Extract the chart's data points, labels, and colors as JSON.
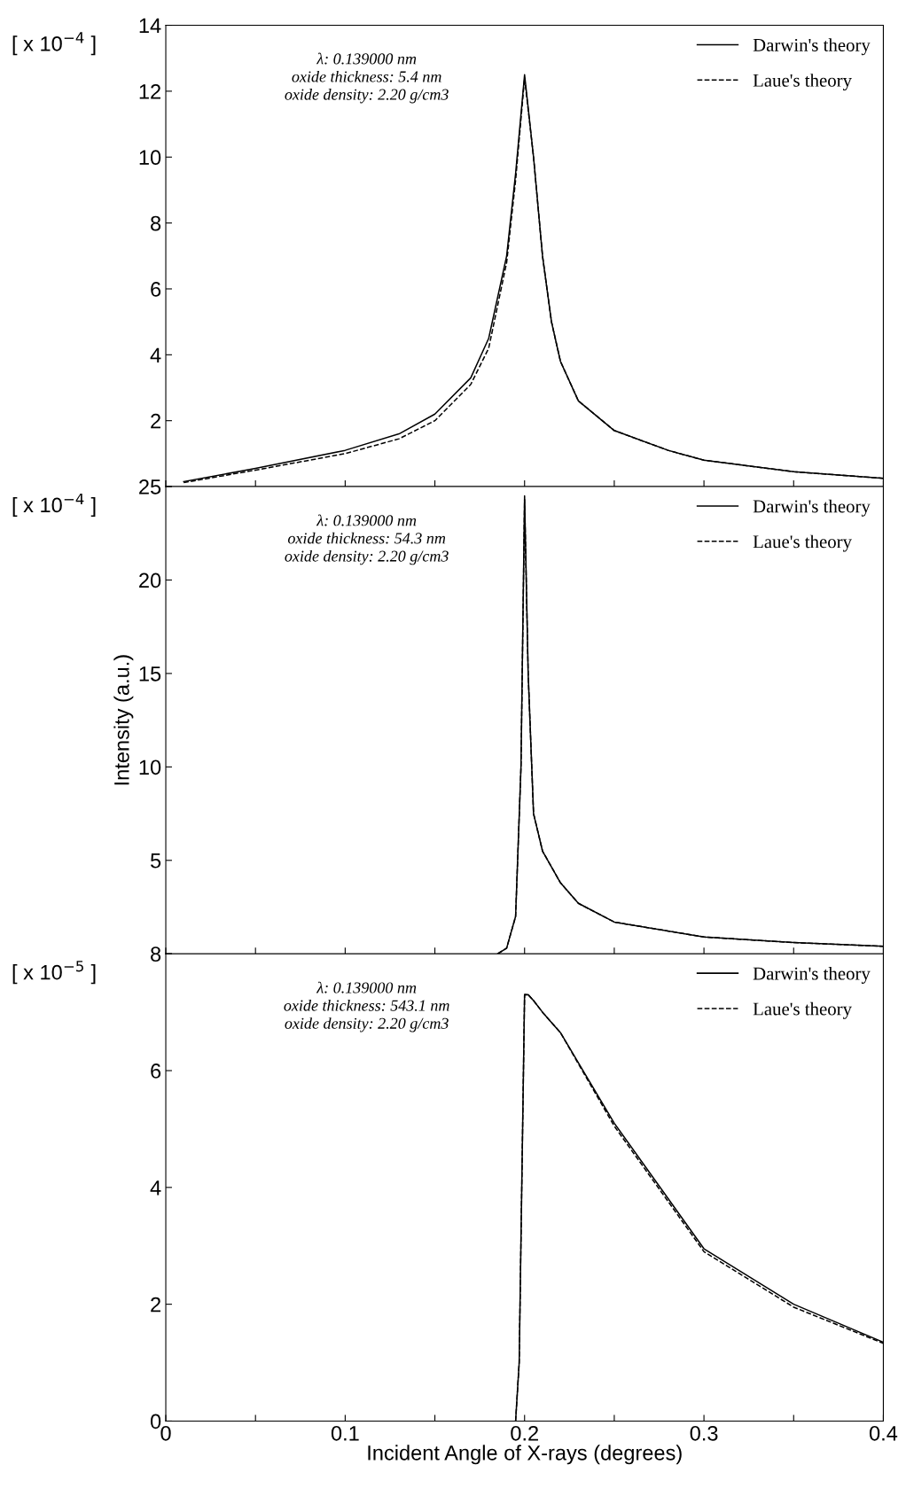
{
  "chart_data": [
    {
      "type": "line",
      "annotations": [
        "[ x 10$^{−4}$ ]",
        "λ: 0.139000 nm\noxide thickness: 5.4 nm\noxide density: 2.20 g/cm3"
      ],
      "xlim": [
        0,
        0.4
      ],
      "ylim": [
        0,
        14
      ],
      "xticks": [
        0,
        {
          "value": 0.05,
          "label": null
        },
        0.1,
        {
          "value": 0.15,
          "label": null
        },
        0.2,
        {
          "value": 0.25,
          "label": null
        },
        0.3,
        {
          "value": 0.35,
          "label": null
        },
        0.4
      ],
      "yticks": [
        {
          "value": 0,
          "label": null
        },
        2,
        4,
        6,
        8,
        10,
        12,
        14
      ],
      "tick_labels": "y",
      "legend": "top right",
      "grid": false,
      "series": [
        {
          "name": "Darwin's theory",
          "color": "#000000",
          "line_style": "solid",
          "x": [
            0.01,
            0.05,
            0.1,
            0.13,
            0.15,
            0.17,
            0.18,
            0.19,
            0.195,
            0.2,
            0.205,
            0.21,
            0.215,
            0.22,
            0.23,
            0.25,
            0.28,
            0.3,
            0.35,
            0.4
          ],
          "values": [
            0.15,
            0.55,
            1.1,
            1.6,
            2.2,
            3.3,
            4.5,
            7,
            9.5,
            12.5,
            10,
            7,
            5,
            3.8,
            2.6,
            1.7,
            1.1,
            0.8,
            0.45,
            0.25
          ]
        },
        {
          "name": "Laue's theory",
          "color": "#000000",
          "line_style": "dashed",
          "x": [
            0.01,
            0.05,
            0.1,
            0.13,
            0.15,
            0.17,
            0.18,
            0.19,
            0.195,
            0.2,
            0.205,
            0.21,
            0.215,
            0.22,
            0.23,
            0.25,
            0.28,
            0.3,
            0.35,
            0.4
          ],
          "values": [
            0.12,
            0.5,
            1.0,
            1.45,
            2.0,
            3.1,
            4.2,
            6.8,
            9.3,
            12.4,
            10,
            7,
            5,
            3.8,
            2.6,
            1.7,
            1.1,
            0.8,
            0.45,
            0.25
          ]
        }
      ]
    },
    {
      "type": "line",
      "ylabel": "Intensity (a.u.)",
      "annotations": [
        "[ x 10$^{−4}$ ]",
        "λ: 0.139000 nm\noxide thickness: 54.3 nm\noxide density: 2.20 g/cm3"
      ],
      "xlim": [
        0,
        0.4
      ],
      "ylim": [
        0,
        25
      ],
      "xticks": [
        0,
        {
          "value": 0.05,
          "label": null
        },
        0.1,
        {
          "value": 0.15,
          "label": null
        },
        0.2,
        {
          "value": 0.25,
          "label": null
        },
        0.3,
        {
          "value": 0.35,
          "label": null
        },
        0.4
      ],
      "yticks": [
        {
          "value": 0,
          "label": null
        },
        5,
        10,
        15,
        20,
        25
      ],
      "tick_labels": "y",
      "legend": "top right",
      "grid": false,
      "series": [
        {
          "name": "Darwin's theory",
          "color": "#000000",
          "line_style": "solid",
          "x": [
            0.185,
            0.19,
            0.195,
            0.198,
            0.2,
            0.202,
            0.205,
            0.21,
            0.22,
            0.23,
            0.25,
            0.3,
            0.35,
            0.4
          ],
          "values": [
            0,
            0.3,
            2,
            10,
            24.5,
            15,
            7.5,
            5.5,
            3.8,
            2.7,
            1.7,
            0.9,
            0.6,
            0.4
          ]
        },
        {
          "name": "Laue's theory",
          "color": "#000000",
          "line_style": "dashed",
          "x": [
            0.185,
            0.19,
            0.195,
            0.198,
            0.2,
            0.202,
            0.205,
            0.21,
            0.22,
            0.23,
            0.25,
            0.3,
            0.35,
            0.4
          ],
          "values": [
            0,
            0.3,
            2,
            10,
            24.3,
            15,
            7.5,
            5.5,
            3.8,
            2.7,
            1.7,
            0.9,
            0.6,
            0.4
          ]
        }
      ]
    },
    {
      "type": "line",
      "xlabel": "Incident Angle of X-rays (degrees)",
      "annotations": [
        "[ x 10$^{−5}$ ]",
        "λ: 0.139000 nm\noxide thickness: 543.1 nm\noxide density: 2.20 g/cm3"
      ],
      "xlim": [
        0,
        0.4
      ],
      "ylim": [
        0,
        8
      ],
      "xticks": [
        0,
        {
          "value": 0.05,
          "label": null
        },
        0.1,
        {
          "value": 0.15,
          "label": null
        },
        0.2,
        {
          "value": 0.25,
          "label": null
        },
        0.3,
        {
          "value": 0.35,
          "label": null
        },
        0.4
      ],
      "yticks": [
        0,
        2,
        4,
        6,
        8
      ],
      "legend": "top right",
      "grid": false,
      "series": [
        {
          "name": "Darwin's theory",
          "color": "#000000",
          "line_style": "solid",
          "x": [
            0.195,
            0.197,
            0.2,
            0.202,
            0.205,
            0.21,
            0.22,
            0.25,
            0.3,
            0.35,
            0.4
          ],
          "values": [
            0,
            1,
            7.3,
            7.3,
            7.2,
            7.0,
            6.65,
            5.1,
            2.95,
            2.0,
            1.35
          ]
        },
        {
          "name": "Laue's theory",
          "color": "#000000",
          "line_style": "dashed",
          "x": [
            0.195,
            0.197,
            0.2,
            0.202,
            0.205,
            0.21,
            0.22,
            0.25,
            0.3,
            0.35,
            0.4
          ],
          "values": [
            0,
            1,
            7.3,
            7.3,
            7.2,
            7.0,
            6.65,
            5.05,
            2.9,
            1.95,
            1.33
          ]
        }
      ]
    }
  ]
}
